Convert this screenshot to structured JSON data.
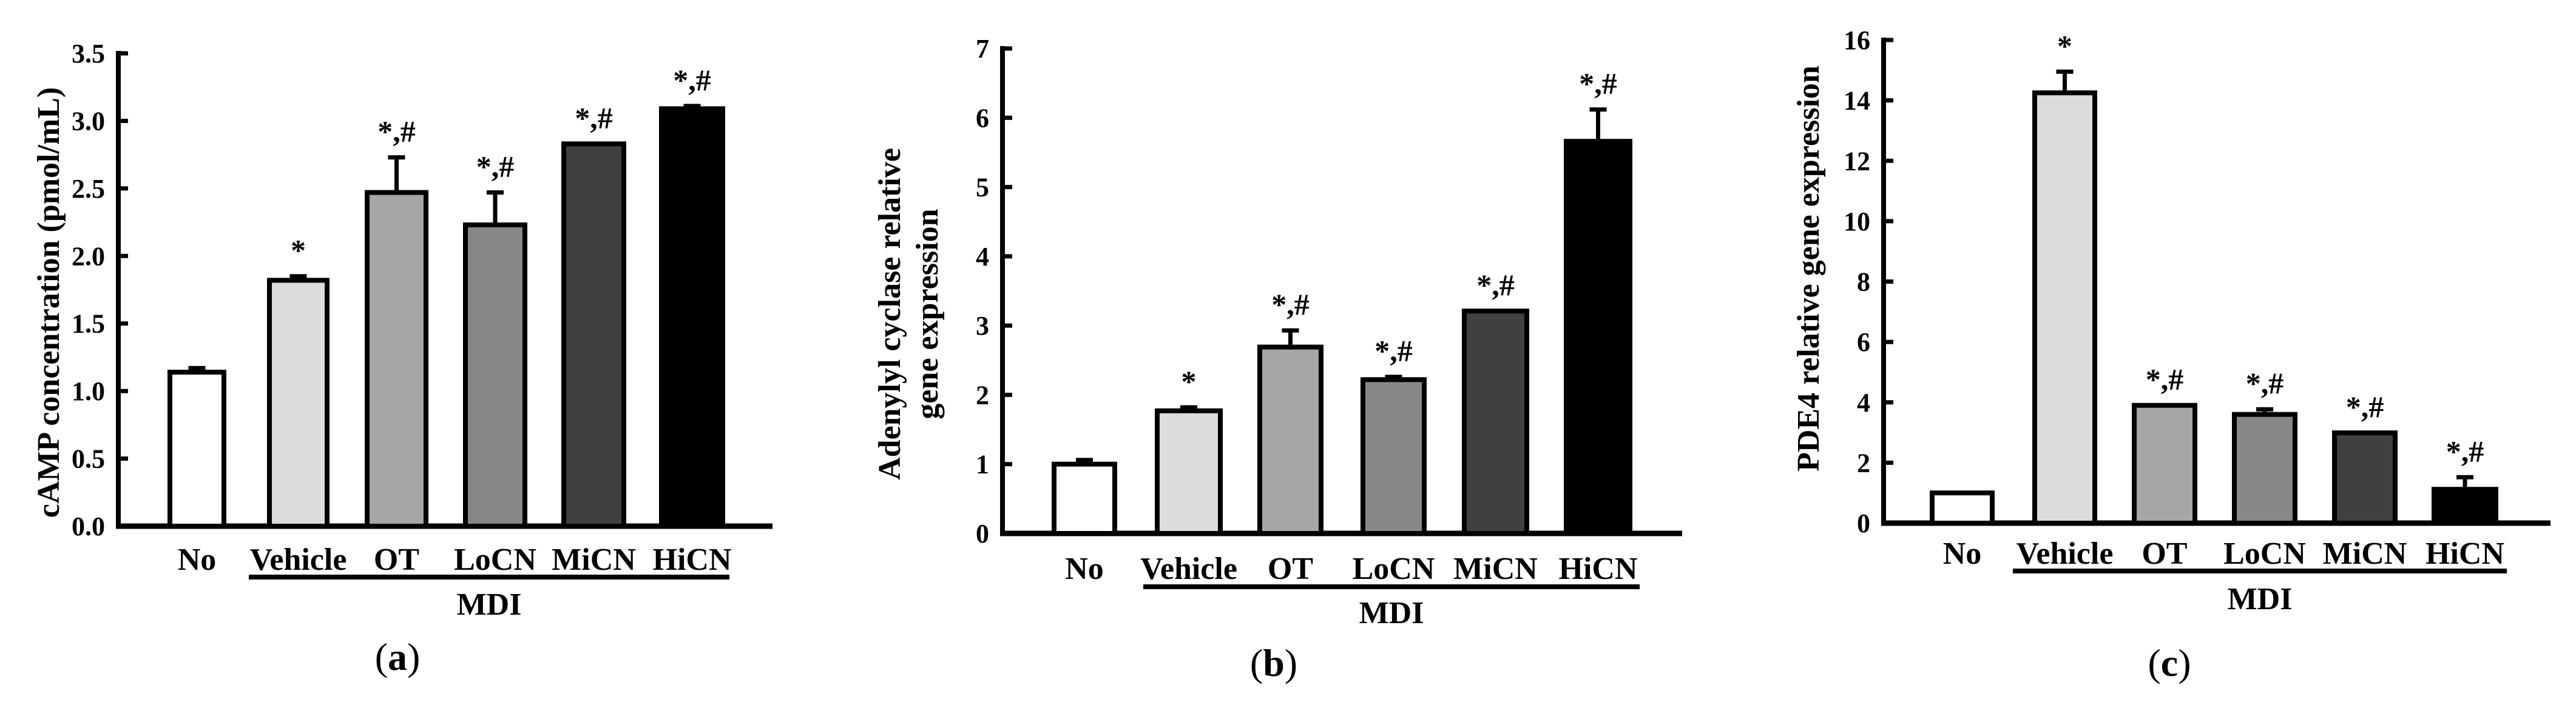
{
  "colors": {
    "No": "#ffffff",
    "Vehicle": "#dcdcdc",
    "OT": "#a6a6a6",
    "LoCN": "#878787",
    "MiCN": "#404040",
    "HiCN": "#000000",
    "stroke": "#000000"
  },
  "chart_data": [
    {
      "type": "bar",
      "panel_label": "a",
      "ylabel": [
        "cAMP concentration (pmol/mL)"
      ],
      "ylim": [
        0,
        3.5
      ],
      "yticks": [
        0,
        0.5,
        1.0,
        1.5,
        2.0,
        2.5,
        3.0,
        3.5
      ],
      "ytick_labels": [
        "0.0",
        "0.5",
        "1.0",
        "1.5",
        "2.0",
        "2.5",
        "3.0",
        "3.5"
      ],
      "categories": [
        "No",
        "Vehicle",
        "OT",
        "LoCN",
        "MiCN",
        "HiCN"
      ],
      "values": [
        1.14,
        1.82,
        2.47,
        2.23,
        2.83,
        3.09
      ],
      "errors": [
        0.03,
        0.03,
        0.26,
        0.24,
        0.0,
        0.02
      ],
      "annotations": [
        "",
        "*",
        "*,#",
        "*,#",
        "*,#",
        "*,#"
      ],
      "group_label": "MDI",
      "grid": false
    },
    {
      "type": "bar",
      "panel_label": "b",
      "ylabel": [
        "Adenylyl cyclase relative",
        "gene expression"
      ],
      "ylim": [
        0,
        7
      ],
      "yticks": [
        0,
        1,
        2,
        3,
        4,
        5,
        6,
        7
      ],
      "ytick_labels": [
        "0",
        "1",
        "2",
        "3",
        "4",
        "5",
        "6",
        "7"
      ],
      "categories": [
        "No",
        "Vehicle",
        "OT",
        "LoCN",
        "MiCN",
        "HiCN"
      ],
      "values": [
        1.0,
        1.77,
        2.69,
        2.22,
        3.21,
        5.66
      ],
      "errors": [
        0.06,
        0.05,
        0.24,
        0.04,
        0.0,
        0.46
      ],
      "annotations": [
        "",
        "*",
        "*,#",
        "*,#",
        "*,#",
        "*,#"
      ],
      "group_label": "MDI",
      "grid": false
    },
    {
      "type": "bar",
      "panel_label": "c",
      "ylabel": [
        "PDE4 relative gene expression"
      ],
      "ylim": [
        0,
        16
      ],
      "yticks": [
        0,
        2,
        4,
        6,
        8,
        10,
        12,
        14,
        16
      ],
      "ytick_labels": [
        "0",
        "2",
        "4",
        "6",
        "8",
        "10",
        "12",
        "14",
        "16"
      ],
      "categories": [
        "No",
        "Vehicle",
        "OT",
        "LoCN",
        "MiCN",
        "HiCN"
      ],
      "values": [
        1.0,
        14.25,
        3.9,
        3.6,
        2.99,
        1.12
      ],
      "errors": [
        0.0,
        0.7,
        0.0,
        0.17,
        0.0,
        0.4
      ],
      "annotations": [
        "",
        "*",
        "*,#",
        "*,#",
        "*,#",
        "*,#"
      ],
      "group_label": "MDI",
      "grid": false
    }
  ]
}
